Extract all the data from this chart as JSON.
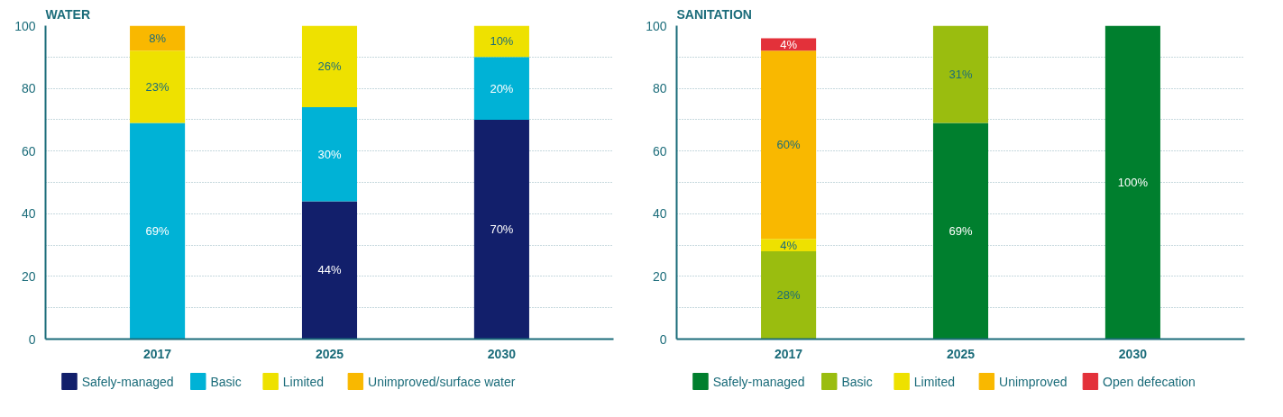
{
  "chart_data": [
    {
      "type": "bar",
      "title": "WATER",
      "stacked": true,
      "categories": [
        "2017",
        "2025",
        "2030"
      ],
      "ylim": [
        0,
        100
      ],
      "yticks": [
        0,
        {
          "value": 10,
          "label": null
        },
        20,
        {
          "value": 30,
          "label": null
        },
        40,
        {
          "value": 50,
          "label": null
        },
        60,
        {
          "value": 70,
          "label": null
        },
        80,
        {
          "value": 90,
          "label": null
        },
        100
      ],
      "grid": "y",
      "legend": "bottom",
      "series": [
        {
          "name": "Safely-managed",
          "color": "#121f6b",
          "values": [
            null,
            44,
            70
          ],
          "value_labels": [
            null,
            "44%",
            "70%"
          ]
        },
        {
          "name": "Basic",
          "color": "#00b2d6",
          "values": [
            69,
            30,
            20
          ],
          "value_labels": [
            "69%",
            "30%",
            "20%"
          ]
        },
        {
          "name": "Limited",
          "color": "#eee100",
          "values": [
            23,
            26,
            10
          ],
          "value_labels": [
            "23%",
            "26%",
            "10%"
          ]
        },
        {
          "name": "Unimproved/surface water",
          "color": "#f9b800",
          "values": [
            8,
            null,
            null
          ],
          "value_labels": [
            "8%",
            null,
            null
          ]
        }
      ]
    },
    {
      "type": "bar",
      "title": "SANITATION",
      "stacked": true,
      "categories": [
        "2017",
        "2025",
        "2030"
      ],
      "ylim": [
        0,
        100
      ],
      "yticks": [
        0,
        {
          "value": 10,
          "label": null
        },
        20,
        {
          "value": 30,
          "label": null
        },
        40,
        {
          "value": 50,
          "label": null
        },
        60,
        {
          "value": 70,
          "label": null
        },
        80,
        {
          "value": 90,
          "label": null
        },
        100
      ],
      "grid": "y",
      "legend": "bottom",
      "series": [
        {
          "name": "Safely-managed",
          "color": "#007f2e",
          "values": [
            null,
            69,
            100
          ],
          "value_labels": [
            null,
            "69%",
            "100%"
          ]
        },
        {
          "name": "Basic",
          "color": "#9abd0f",
          "values": [
            28,
            31,
            null
          ],
          "value_labels": [
            "28%",
            "31%",
            null
          ]
        },
        {
          "name": "Limited",
          "color": "#eee100",
          "values": [
            4,
            null,
            null
          ],
          "value_labels": [
            "4%",
            null,
            null
          ]
        },
        {
          "name": "Unimproved",
          "color": "#f9b800",
          "values": [
            60,
            null,
            null
          ],
          "value_labels": [
            "60%",
            null,
            null
          ]
        },
        {
          "name": "Open defecation",
          "color": "#e3313a",
          "values": [
            4,
            null,
            null
          ],
          "value_labels": [
            "4%",
            null,
            null
          ]
        }
      ]
    }
  ]
}
